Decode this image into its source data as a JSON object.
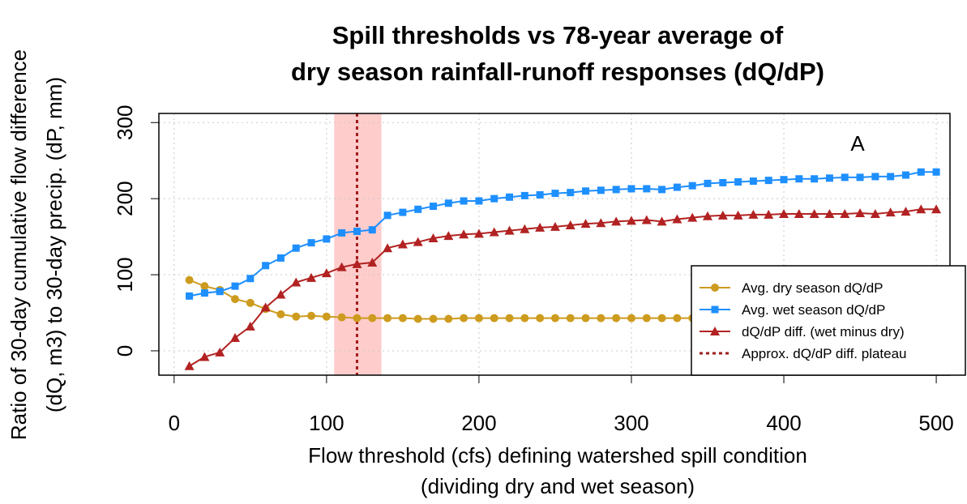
{
  "chart_data": {
    "type": "line",
    "title": [
      "Spill thresholds vs 78-year average of",
      "dry season rainfall-runoff responses (dQ/dP)"
    ],
    "x_label": [
      "Flow threshold (cfs) defining watershed spill condition",
      "(dividing dry and wet season)"
    ],
    "y_label": [
      "Ratio of 30-day cumulative flow difference",
      "(dQ, m3) to 30-day precip. (dP, mm)"
    ],
    "annotation": "A",
    "x": [
      10,
      20,
      30,
      40,
      50,
      60,
      70,
      80,
      90,
      100,
      110,
      120,
      130,
      140,
      150,
      160,
      170,
      180,
      190,
      200,
      210,
      220,
      230,
      240,
      250,
      260,
      270,
      280,
      290,
      300,
      310,
      320,
      330,
      340,
      350,
      360,
      370,
      380,
      390,
      400,
      410,
      420,
      430,
      440,
      450,
      460,
      470,
      480,
      490,
      500
    ],
    "series": [
      {
        "name": "Avg. dry season dQ/dP",
        "color": "#cd9b1d",
        "marker": "circle",
        "values": [
          93,
          85,
          80,
          68,
          63,
          55,
          48,
          45,
          46,
          45,
          44,
          43,
          43,
          43,
          43,
          42,
          42,
          42,
          43,
          43,
          43,
          43,
          43,
          43,
          43,
          43,
          43,
          43,
          43,
          43,
          43,
          43,
          43,
          43,
          43,
          44,
          44,
          44,
          44,
          44,
          44,
          44,
          44,
          44,
          44,
          44,
          44,
          44,
          44,
          44
        ]
      },
      {
        "name": "Avg. wet season dQ/dP",
        "color": "#1e8fff",
        "marker": "square",
        "values": [
          72,
          76,
          78,
          85,
          95,
          112,
          122,
          135,
          142,
          147,
          155,
          157,
          159,
          178,
          182,
          186,
          190,
          194,
          197,
          197,
          200,
          202,
          204,
          205,
          207,
          208,
          210,
          211,
          212,
          213,
          213,
          212,
          215,
          217,
          220,
          221,
          222,
          223,
          224,
          225,
          226,
          226,
          227,
          228,
          228,
          229,
          229,
          231,
          235,
          235
        ]
      },
      {
        "name": "dQ/dP diff. (wet minus dry)",
        "color": "#b22222",
        "marker": "triangle",
        "values": [
          -20,
          -8,
          -2,
          17,
          32,
          57,
          74,
          90,
          96,
          102,
          110,
          114,
          116,
          135,
          140,
          143,
          148,
          151,
          153,
          154,
          156,
          158,
          160,
          162,
          163,
          165,
          167,
          168,
          170,
          171,
          172,
          170,
          173,
          175,
          177,
          178,
          178,
          179,
          179,
          180,
          180,
          180,
          180,
          180,
          181,
          180,
          182,
          183,
          186,
          186
        ]
      }
    ],
    "reference_line": {
      "name": "Approx. dQ/dP diff. plateau",
      "x": 120,
      "color": "#a01c1c"
    },
    "highlight": {
      "xrange": [
        105,
        136
      ],
      "color": "#ffcccc"
    },
    "xlim": [
      -10,
      509
    ],
    "ylim": [
      -32,
      312
    ],
    "xticks": [
      0,
      100,
      200,
      300,
      400,
      500
    ],
    "yticks": [
      0,
      100,
      200,
      300
    ],
    "grid": true,
    "legend": "bottom-right"
  }
}
